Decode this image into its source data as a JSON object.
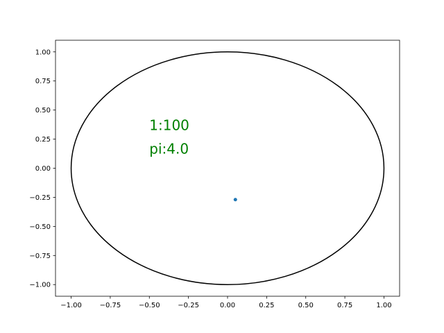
{
  "chart_data": {
    "type": "scatter",
    "title": "",
    "xlabel": "",
    "ylabel": "",
    "xlim": [
      -1.1,
      1.1
    ],
    "ylim": [
      -1.1,
      1.1
    ],
    "grid": false,
    "x_ticks": [
      -1.0,
      -0.75,
      -0.5,
      -0.25,
      0.0,
      0.25,
      0.5,
      0.75,
      1.0
    ],
    "x_tick_labels": [
      "−1.00",
      "−0.75",
      "−0.50",
      "−0.25",
      "0.00",
      "0.25",
      "0.50",
      "0.75",
      "1.00"
    ],
    "y_ticks": [
      1.0,
      0.75,
      0.5,
      0.25,
      0.0,
      -0.25,
      -0.5,
      -0.75,
      -1.0
    ],
    "y_tick_labels": [
      "1.00",
      "0.75",
      "0.50",
      "0.25",
      "0.00",
      "−0.25",
      "−0.50",
      "−0.75",
      "−1.00"
    ],
    "circle": {
      "center": [
        0,
        0
      ],
      "radius": 1.0,
      "color": "#000000"
    },
    "points": [
      {
        "x": 0.05,
        "y": -0.27,
        "color": "#1f77b4"
      }
    ],
    "annotation": {
      "lines": [
        "1:100",
        "pi:4.0"
      ],
      "x": -0.5,
      "y": 0.1,
      "color": "#008000"
    }
  }
}
